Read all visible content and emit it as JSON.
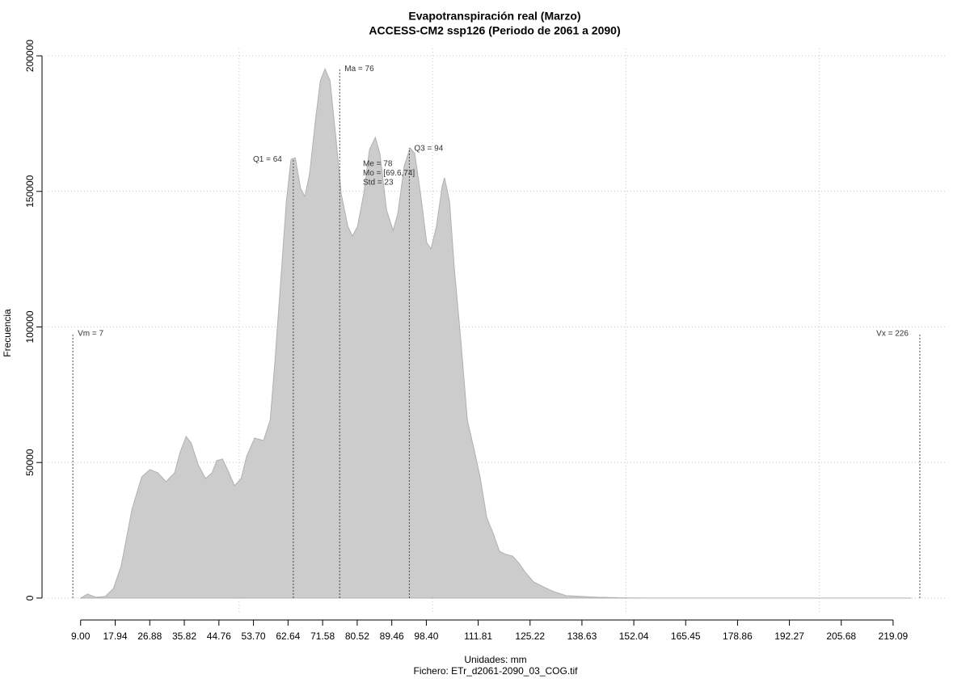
{
  "chart_data": {
    "type": "area",
    "title": "Evapotranspiración real (Marzo)",
    "subtitle": "ACCESS-CM2 ssp126 (Periodo de 2061 a 2090)",
    "xlabel": "Unidades: mm",
    "caption": "Fichero: ETr_d2061-2090_03_COG.tif",
    "ylabel": "Frecuencia",
    "color": "#cccccc",
    "grid": true,
    "xlim": [
      0.7,
      232.7
    ],
    "ylim": [
      -5400,
      202700
    ],
    "yticks": [
      0,
      50000,
      100000,
      150000,
      200000
    ],
    "xgrid": [
      50,
      100,
      150,
      200
    ],
    "xticks": [
      {
        "value": 9,
        "label": "9.00"
      },
      17.94,
      26.88,
      35.82,
      44.76,
      {
        "value": 53.7,
        "label": "53.70"
      },
      62.64,
      71.58,
      80.52,
      89.46,
      {
        "value": 98.4,
        "label": "98.40"
      },
      111.81,
      125.22,
      138.63,
      152.04,
      165.45,
      178.86,
      192.27,
      205.68,
      219.09
    ],
    "x": [
      9.0,
      10.8,
      12.9,
      15.4,
      17.5,
      19.5,
      22.3,
      24.8,
      26.9,
      29.0,
      31.1,
      33.3,
      34.7,
      36.3,
      37.6,
      39.4,
      41.3,
      43.0,
      44.2,
      45.7,
      47.1,
      48.8,
      50.5,
      51.9,
      54.0,
      56.3,
      58.0,
      59.2,
      60.7,
      62.2,
      63.4,
      64.5,
      65.9,
      67.0,
      68.2,
      69.7,
      71.0,
      72.2,
      73.5,
      75.0,
      76.4,
      78.1,
      79.3,
      80.6,
      82.2,
      83.7,
      85.2,
      86.4,
      88.1,
      89.8,
      91.0,
      92.7,
      94.2,
      95.4,
      96.9,
      98.5,
      99.6,
      101.0,
      102.5,
      103.1,
      104.4,
      105.6,
      107.3,
      109.0,
      110.7,
      112.3,
      114.0,
      115.7,
      117.3,
      119.0,
      120.7,
      122.4,
      124.0,
      126.1,
      128.6,
      131.3,
      134.5,
      138.7,
      142.8,
      149.1,
      155.4,
      223.7
    ],
    "values": [
      0,
      1500,
      300,
      600,
      3600,
      11900,
      32800,
      44700,
      47400,
      46200,
      42900,
      46200,
      53700,
      59600,
      57200,
      49200,
      44100,
      46200,
      50700,
      51300,
      47100,
      41400,
      44100,
      52200,
      59000,
      58100,
      65600,
      86400,
      116200,
      146100,
      161800,
      162400,
      151100,
      148100,
      156500,
      175900,
      190800,
      195200,
      190800,
      169900,
      149000,
      137100,
      133500,
      137100,
      149000,
      165400,
      169900,
      163900,
      143100,
      135600,
      141600,
      159500,
      166000,
      164000,
      149000,
      131100,
      128800,
      137100,
      152000,
      155000,
      146100,
      122200,
      95400,
      65600,
      55100,
      44700,
      29800,
      23800,
      17300,
      16100,
      15500,
      12800,
      9500,
      6000,
      4200,
      2400,
      900,
      600,
      300,
      100,
      0,
      0
    ],
    "stat_lines": [
      {
        "label": "Vm = 7",
        "x": 7,
        "top": 97800
      },
      {
        "label": "Q1 = 64",
        "x": 64,
        "top": 162000
      },
      {
        "label": "Ma = 76",
        "x": 76,
        "top": 195500
      },
      {
        "label": "Q3 = 94",
        "x": 94,
        "top": 166000
      },
      {
        "label": "Vx = 226",
        "x": 226,
        "top": 97800
      }
    ],
    "annotations": [
      "Me = 78",
      "Mo = [69.6,74]",
      "Std = 23"
    ]
  }
}
